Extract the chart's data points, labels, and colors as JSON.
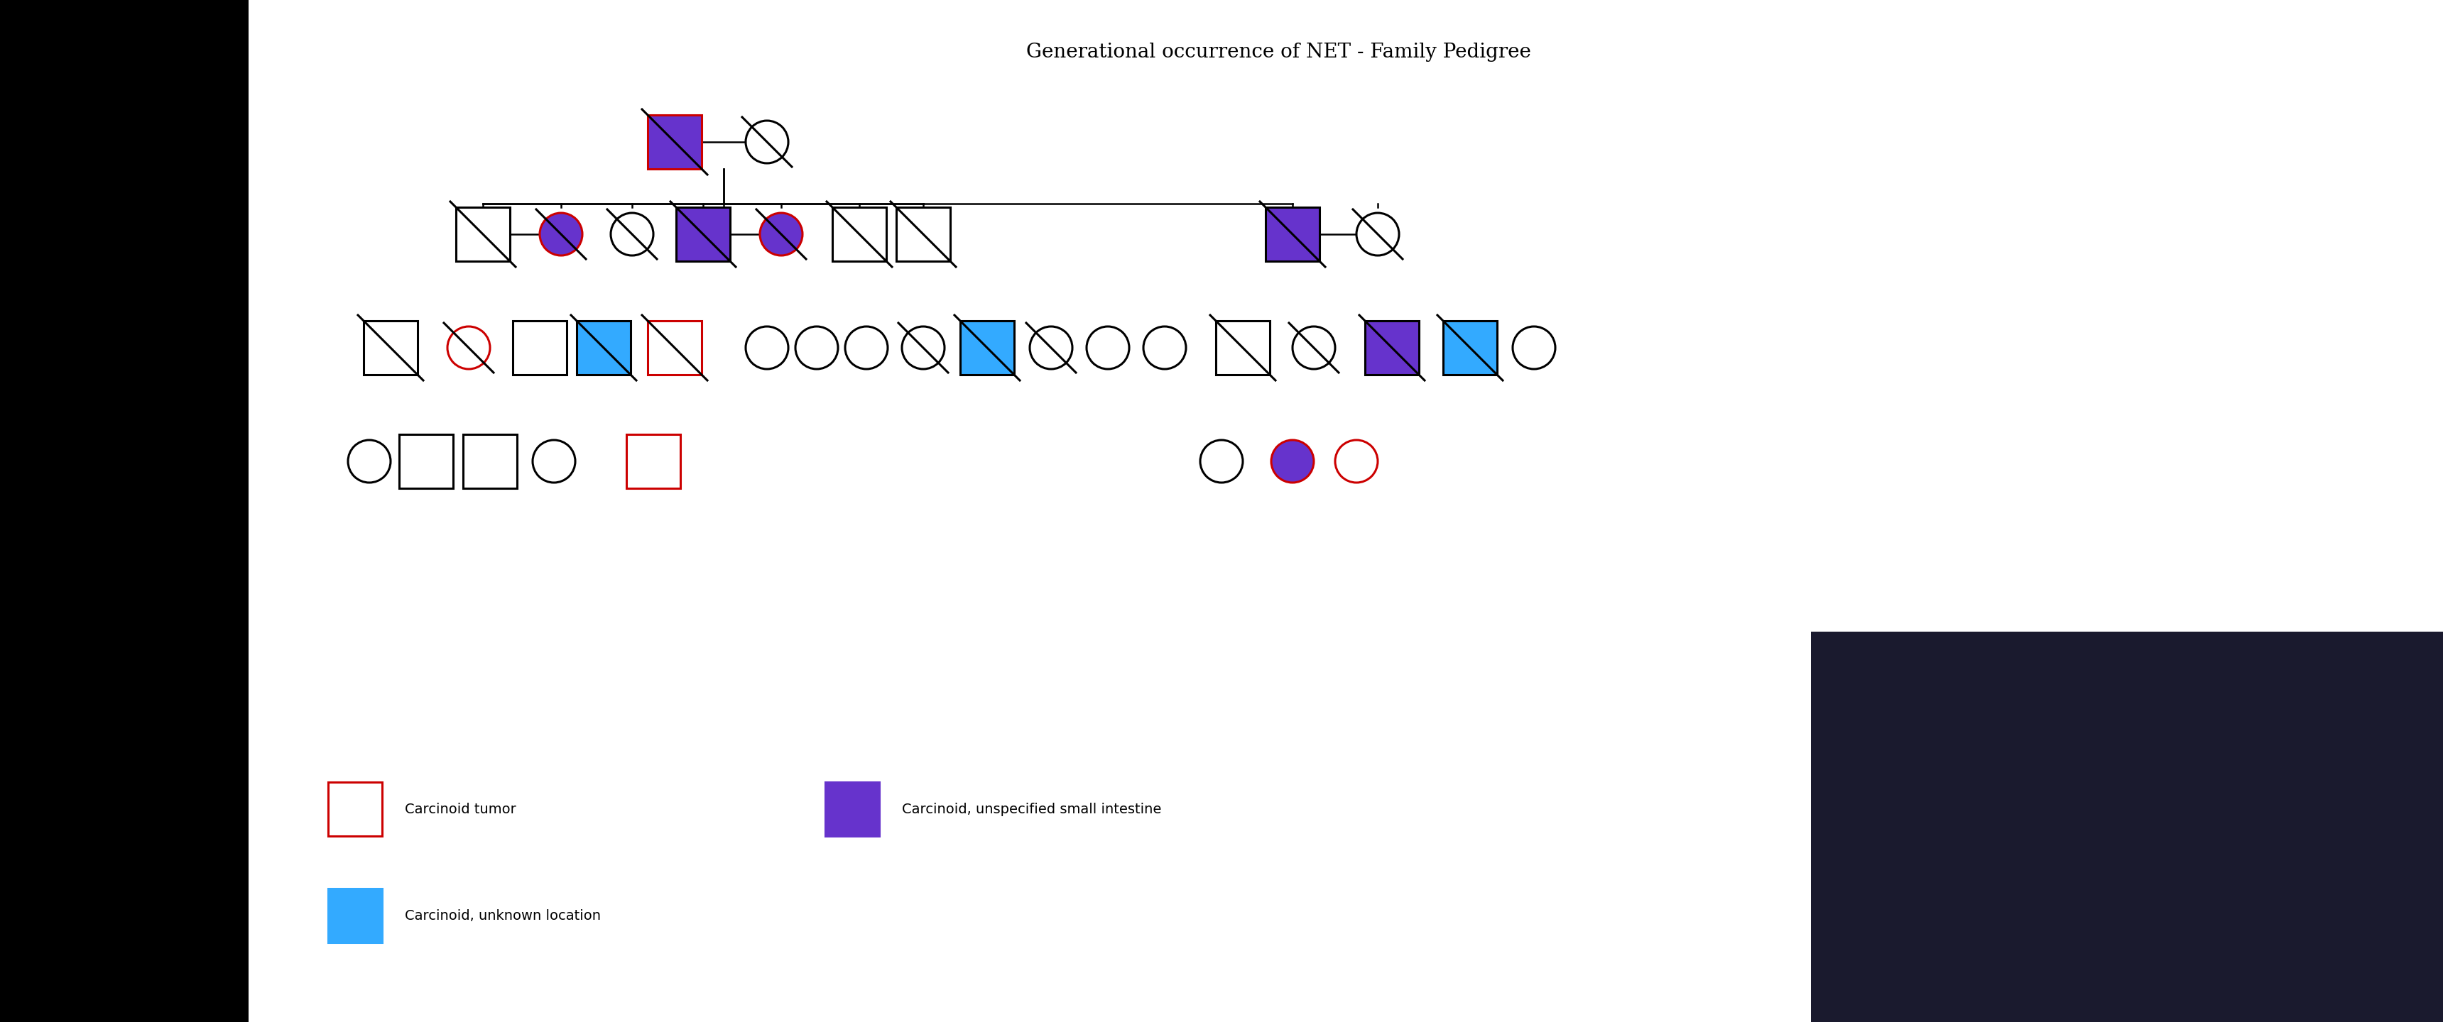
{
  "title": "Generational occurrence of NET - Family Pedigree",
  "title_fontsize": 22,
  "background_color": "#ffffff",
  "colors": {
    "purple": "#6633cc",
    "red_border": "#cc0000",
    "blue": "#3399ff",
    "black": "#000000",
    "white": "#ffffff"
  },
  "legend": [
    {
      "label": "Carcinoid tumor",
      "type": "square_red_border"
    },
    {
      "label": "Carcinoid, unspecified small intestine",
      "type": "square_purple"
    },
    {
      "label": "Carcinoid, unknown location",
      "type": "square_blue"
    }
  ]
}
